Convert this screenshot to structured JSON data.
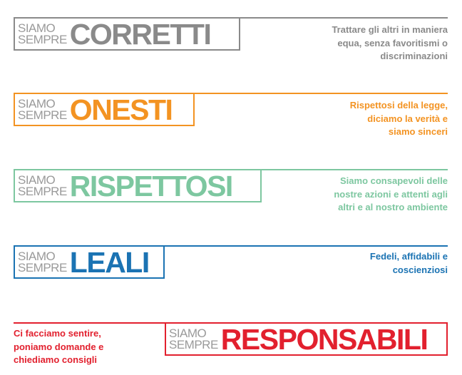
{
  "prefix_line1": "SIAMO",
  "prefix_line2": "SEMPRE",
  "values": [
    {
      "word": "CORRETTI",
      "color": "#8a8a8a",
      "lines": [
        "Trattare gli altri in maniera",
        "equa, senza favoritismi o",
        "discriminazioni"
      ]
    },
    {
      "word": "ONESTI",
      "color": "#f39322",
      "lines": [
        "Rispettosi della legge,",
        "diciamo la verità e",
        "siamo sinceri"
      ]
    },
    {
      "word": "RISPETTOSI",
      "color": "#7dc7a0",
      "lines": [
        "Siamo consapevoli delle",
        "nostre azioni e attenti agli",
        "altri e al nostro ambiente"
      ]
    },
    {
      "word": "LEALI",
      "color": "#1b73b3",
      "lines": [
        "Fedeli, affidabili e",
        "coscienziosi"
      ]
    },
    {
      "word": "RESPONSABILI",
      "color": "#e2202e",
      "lines": [
        "Ci facciamo sentire,",
        "poniamo domande e",
        "chiediamo consigli"
      ]
    }
  ]
}
